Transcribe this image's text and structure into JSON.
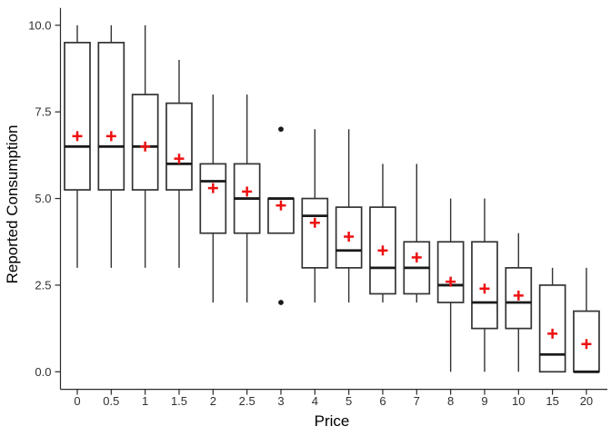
{
  "figure": {
    "background": "#ffffff"
  },
  "chart_data": {
    "type": "boxplot",
    "title": "",
    "xlabel": "Price",
    "ylabel": "Reported Consumption",
    "x_categories": [
      "0",
      "0.5",
      "1",
      "1.5",
      "2",
      "2.5",
      "3",
      "4",
      "5",
      "6",
      "7",
      "8",
      "9",
      "10",
      "15",
      "20"
    ],
    "y_ticks": [
      {
        "value": 0,
        "label": "0.0"
      },
      {
        "value": 2.5,
        "label": "2.5"
      },
      {
        "value": 5,
        "label": "5.0"
      },
      {
        "value": 7.5,
        "label": "7.5"
      },
      {
        "value": 10,
        "label": "10.0"
      }
    ],
    "ylim": [
      0,
      10
    ],
    "grid": false,
    "legend": "none",
    "mean_marker": "red-plus",
    "boxes": [
      {
        "price": "0",
        "lower_whisker": 3,
        "q1": 5.25,
        "median": 6.5,
        "q3": 9.5,
        "upper_whisker": 10,
        "mean": 6.8,
        "outliers": []
      },
      {
        "price": "0.5",
        "lower_whisker": 3,
        "q1": 5.25,
        "median": 6.5,
        "q3": 9.5,
        "upper_whisker": 10,
        "mean": 6.8,
        "outliers": []
      },
      {
        "price": "1",
        "lower_whisker": 3,
        "q1": 5.25,
        "median": 6.5,
        "q3": 8,
        "upper_whisker": 10,
        "mean": 6.5,
        "outliers": []
      },
      {
        "price": "1.5",
        "lower_whisker": 3,
        "q1": 5.25,
        "median": 6,
        "q3": 7.75,
        "upper_whisker": 9,
        "mean": 6.15,
        "outliers": []
      },
      {
        "price": "2",
        "lower_whisker": 2,
        "q1": 4,
        "median": 5.5,
        "q3": 6,
        "upper_whisker": 8,
        "mean": 5.3,
        "outliers": []
      },
      {
        "price": "2.5",
        "lower_whisker": 2,
        "q1": 4,
        "median": 5,
        "q3": 6,
        "upper_whisker": 8,
        "mean": 5.2,
        "outliers": []
      },
      {
        "price": "3",
        "lower_whisker": 4,
        "q1": 4,
        "median": 5,
        "q3": 5,
        "upper_whisker": 5,
        "mean": 4.8,
        "outliers": [
          7,
          2
        ]
      },
      {
        "price": "4",
        "lower_whisker": 2,
        "q1": 3,
        "median": 4.5,
        "q3": 5,
        "upper_whisker": 7,
        "mean": 4.3,
        "outliers": []
      },
      {
        "price": "5",
        "lower_whisker": 2,
        "q1": 3,
        "median": 3.5,
        "q3": 4.75,
        "upper_whisker": 7,
        "mean": 3.9,
        "outliers": []
      },
      {
        "price": "6",
        "lower_whisker": 2,
        "q1": 2.25,
        "median": 3,
        "q3": 4.75,
        "upper_whisker": 6,
        "mean": 3.5,
        "outliers": []
      },
      {
        "price": "7",
        "lower_whisker": 2,
        "q1": 2.25,
        "median": 3,
        "q3": 3.75,
        "upper_whisker": 6,
        "mean": 3.3,
        "outliers": []
      },
      {
        "price": "8",
        "lower_whisker": 0,
        "q1": 2,
        "median": 2.5,
        "q3": 3.75,
        "upper_whisker": 5,
        "mean": 2.6,
        "outliers": []
      },
      {
        "price": "9",
        "lower_whisker": 0,
        "q1": 1.25,
        "median": 2,
        "q3": 3.75,
        "upper_whisker": 5,
        "mean": 2.4,
        "outliers": []
      },
      {
        "price": "10",
        "lower_whisker": 0,
        "q1": 1.25,
        "median": 2,
        "q3": 3,
        "upper_whisker": 4,
        "mean": 2.2,
        "outliers": []
      },
      {
        "price": "15",
        "lower_whisker": 0,
        "q1": 0,
        "median": 0.5,
        "q3": 2.5,
        "upper_whisker": 3,
        "mean": 1.1,
        "outliers": []
      },
      {
        "price": "20",
        "lower_whisker": 0,
        "q1": 0,
        "median": 0,
        "q3": 1.75,
        "upper_whisker": 3,
        "mean": 0.8,
        "outliers": []
      }
    ],
    "colors": {
      "box_fill": "#ffffff",
      "box_border": "#333333",
      "whisker": "#333333",
      "median": "#1a1a1a",
      "mean_marker": "#ee1111",
      "outlier": "#1a1a1a",
      "axis": "#2a2a2a",
      "tick_text": "#303030",
      "title_text": "#000000"
    }
  }
}
